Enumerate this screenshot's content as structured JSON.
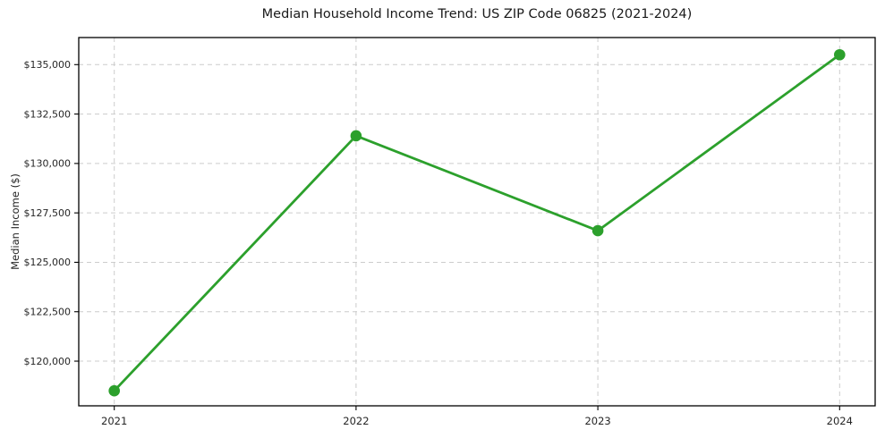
{
  "page": {
    "background_color": "#ffffff"
  },
  "chart_data": {
    "type": "line",
    "title": "Median Household Income Trend: US ZIP Code 06825 (2021-2024)",
    "xlabel": "",
    "ylabel": "Median Income ($)",
    "categories": [
      "2021",
      "2022",
      "2023",
      "2024"
    ],
    "series": [
      {
        "name": "Median Household Income",
        "values": [
          118500,
          131400,
          126600,
          135500
        ]
      }
    ],
    "ylim": [
      117740,
      136370
    ],
    "yticks": [
      120000,
      122500,
      125000,
      127500,
      130000,
      132500,
      135000
    ],
    "ytick_labels": [
      "$120,000",
      "$122,500",
      "$125,000",
      "$127,500",
      "$130,000",
      "$132,500",
      "$135,000"
    ],
    "grid": true,
    "grid_style": "dashed",
    "legend_position": "none",
    "line_color": "#2ca02c",
    "marker_color": "#2ca02c",
    "marker_shape": "circle",
    "grid_color": "#cccccc",
    "axis_color": "#000000",
    "tick_text_color": "#262626",
    "title_color": "#1a1a1a"
  }
}
